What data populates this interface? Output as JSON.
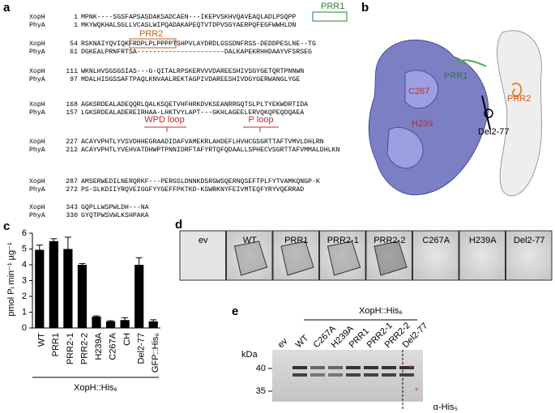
{
  "panel_labels": [
    "a",
    "b",
    "c",
    "d",
    "e"
  ],
  "alignment": {
    "blocks": [
      [
        {
          "name": "XopH",
          "start": 1,
          "seq": "MPNK----SGSFAPSASDAKSADCAEN---IKEPVSKHVQAVEAQLADLPSQPP"
        },
        {
          "name": "PhyA",
          "start": 1,
          "seq": "MKYWQKHALSGLLVCASLWIPQADAKAPEQTVTDPVSGYAERPQFEGFWWHLDN"
        }
      ],
      [
        {
          "name": "XopH",
          "start": 54,
          "seq": "RSKNAIYQVIQKFRDPLPLPPPPTSHPVLAYDRDLGSSDNFRSS-DEDDPESLNE--TG"
        },
        {
          "name": "PhyA",
          "start": 61,
          "seq": "DGKEALPRNFRTSA----------------------DALKAPEKRHHDAAYVFSRSEG"
        }
      ],
      [
        {
          "name": "XopH",
          "start": 111,
          "seq": "WKNLHVSGSGSIAS---G-QITALRPSKERVVVDAREESHIVSGYGETQRTPNNWN"
        },
        {
          "name": "PhyA",
          "start": 97,
          "seq": "MDALHISGSSAFTPAQLKNVAALREKTAGPIVDAREESHIVDGYGERWANGLYGE"
        }
      ],
      [
        {
          "name": "XopH",
          "start": 168,
          "seq": "AGKSRDEALADEQQRLQALKSQETVHFHRKDVKSEANRRGQTSLPLTYEKWDRTIDA"
        },
        {
          "name": "PhyA",
          "start": 157,
          "seq": "LGKSRDEALADEREIRHAA-LHKTVYLAPT---GKHLAGEELERVQKQPEQDQAEA"
        }
      ],
      [
        {
          "name": "XopH",
          "start": 227,
          "seq": "ACAYVPHTLYVSVDHHEGRAADIDAFVAMEKRLAHDEFLHVHCGSGRTTAFTVMVLDHLRN"
        },
        {
          "name": "PhyA",
          "start": 212,
          "seq": "ACAYVPHTLYVEHVATDHWPTPNNIDRFTAFYRTQFQDAALLSPHECVSGRTTAFVMMALDHLKN"
        }
      ],
      [
        {
          "name": "XopH",
          "start": 287,
          "seq": "AMSERWEDILNERQRKF---PERGSLDNNKDSRGWSQERNQSEFTPLFYTVAMKQNGP-K"
        },
        {
          "name": "PhyA",
          "start": 272,
          "seq": "PS-SLKDIIYRQVEIGGFYYGEFFPKTKD-KSWRKNYFEIVMTEQFYRYVQERRAD"
        }
      ],
      [
        {
          "name": "XopH",
          "start": 343,
          "seq": "GQPLLWSPWLDH---NA"
        },
        {
          "name": "PhyA",
          "start": 330,
          "seq": "GYQTPWSVWLKSHPAKA"
        }
      ]
    ],
    "prr1": "PRR1",
    "prr2": "PRR2",
    "wpd_loop": "WPD loop",
    "p_loop": "P loop"
  },
  "structure": {
    "prr1": "PRR1",
    "c267": "C267",
    "prr2": "PRR2",
    "h239": "H239",
    "del": "Del2-77"
  },
  "chart_data": {
    "type": "bar",
    "ylabel": "pmol Pᵢ min⁻¹ µg⁻¹",
    "categories": [
      "WT",
      "PRR1",
      "PRR2-1",
      "PRR2-2",
      "H239A",
      "C267A",
      "CH",
      "Del2-77",
      "GFP::His₆"
    ],
    "values": [
      4.95,
      5.5,
      5.0,
      4.0,
      0.72,
      0.42,
      0.5,
      4.0,
      0.42
    ],
    "errors": [
      0.3,
      0.15,
      0.75,
      0.08,
      0.05,
      0.04,
      0.15,
      0.45,
      0.1
    ],
    "color": "#000000",
    "ylim": [
      0,
      6
    ],
    "yticks": [
      0,
      1,
      2,
      3,
      4,
      5,
      6
    ],
    "group_label": "XopH::His₆"
  },
  "microscopy": {
    "labels": [
      "ev",
      "WT",
      "PRR1",
      "PRR2-1",
      "PRR2-2",
      "C267A",
      "H239A",
      "Del2-77"
    ]
  },
  "blot": {
    "header": "XopH::His₆",
    "lanes": [
      "ev",
      "WT",
      "C267A",
      "H239A",
      "PRR1",
      "PRR2-1",
      "PRR2-2",
      "Del2-77"
    ],
    "unit": "kDa",
    "markers": [
      40,
      35
    ],
    "antibody": "α-His₅"
  }
}
